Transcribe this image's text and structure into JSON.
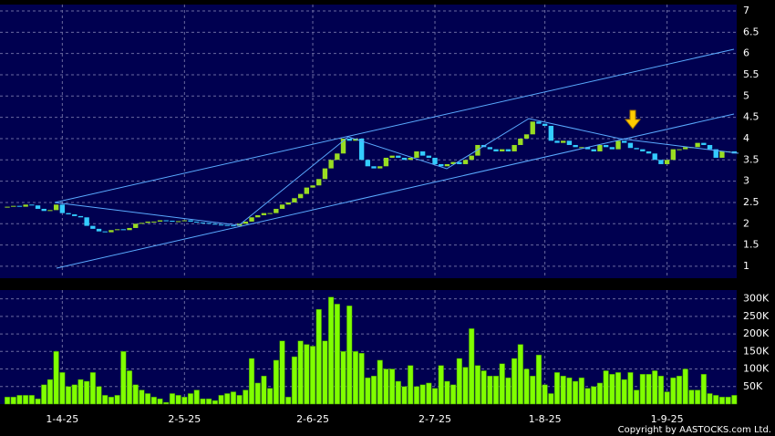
{
  "chart_data": [
    {
      "type": "candlestick",
      "up_color": "#99dd22",
      "down_color": "#33ccff",
      "ylim": [
        0.72,
        7.15
      ],
      "yticks": [
        1,
        1.5,
        2,
        2.5,
        3,
        3.5,
        4,
        4.5,
        5,
        5.5,
        6,
        6.5,
        7
      ],
      "xlim": [
        -1.2,
        119.4
      ],
      "grid": true,
      "series": [
        {
          "name": "Open",
          "values": [
            2.38,
            2.4,
            2.42,
            2.4,
            2.45,
            2.43,
            2.35,
            2.3,
            2.32,
            2.45,
            2.25,
            2.22,
            2.18,
            2.15,
            1.95,
            1.88,
            1.82,
            1.8,
            1.85,
            1.87,
            1.85,
            1.9,
            2.0,
            2.02,
            2.05,
            2.05,
            2.08,
            2.07,
            2.05,
            2.06,
            2.08,
            2.05,
            2.03,
            2.02,
            2.0,
            1.98,
            1.97,
            1.96,
            1.95,
            2.0,
            2.05,
            2.15,
            2.2,
            2.25,
            2.25,
            2.35,
            2.45,
            2.5,
            2.6,
            2.7,
            2.85,
            2.9,
            3.05,
            3.3,
            3.5,
            3.65,
            4.0,
            3.95,
            4.0,
            3.5,
            3.35,
            3.3,
            3.35,
            3.55,
            3.6,
            3.55,
            3.5,
            3.55,
            3.7,
            3.6,
            3.55,
            3.4,
            3.35,
            3.4,
            3.45,
            3.4,
            3.5,
            3.6,
            3.85,
            3.8,
            3.75,
            3.7,
            3.75,
            3.7,
            3.85,
            4.0,
            4.1,
            4.4,
            4.35,
            4.3,
            3.95,
            3.9,
            3.95,
            3.85,
            3.8,
            3.8,
            3.75,
            3.7,
            3.85,
            3.8,
            3.75,
            3.95,
            3.9,
            3.78,
            3.75,
            3.7,
            3.65,
            3.5,
            3.4,
            3.5,
            3.75,
            3.75,
            3.8,
            3.8,
            3.9,
            3.85,
            3.75,
            3.55,
            3.7,
            3.7
          ]
        },
        {
          "name": "Close",
          "values": [
            2.4,
            2.42,
            2.4,
            2.45,
            2.43,
            2.35,
            2.3,
            2.32,
            2.45,
            2.25,
            2.22,
            2.18,
            2.15,
            1.95,
            1.88,
            1.82,
            1.8,
            1.85,
            1.87,
            1.85,
            1.9,
            2.0,
            2.02,
            2.05,
            2.05,
            2.08,
            2.07,
            2.05,
            2.06,
            2.08,
            2.05,
            2.03,
            2.02,
            2.0,
            1.98,
            1.97,
            1.96,
            1.95,
            2.0,
            2.05,
            2.15,
            2.2,
            2.25,
            2.25,
            2.35,
            2.45,
            2.5,
            2.6,
            2.7,
            2.85,
            2.9,
            3.05,
            3.3,
            3.5,
            3.65,
            4.0,
            3.95,
            4.0,
            3.5,
            3.35,
            3.3,
            3.35,
            3.55,
            3.6,
            3.55,
            3.5,
            3.55,
            3.7,
            3.6,
            3.55,
            3.4,
            3.35,
            3.4,
            3.45,
            3.4,
            3.5,
            3.6,
            3.85,
            3.8,
            3.75,
            3.7,
            3.75,
            3.7,
            3.85,
            4.0,
            4.1,
            4.4,
            4.35,
            4.3,
            3.95,
            3.9,
            3.95,
            3.85,
            3.8,
            3.8,
            3.75,
            3.7,
            3.85,
            3.8,
            3.75,
            3.95,
            3.9,
            3.78,
            3.75,
            3.7,
            3.65,
            3.5,
            3.4,
            3.5,
            3.75,
            3.75,
            3.8,
            3.8,
            3.9,
            3.85,
            3.75,
            3.55,
            3.7,
            3.7,
            3.65
          ]
        }
      ]
    },
    {
      "type": "bar",
      "color": "#80ff00",
      "ylim": [
        0,
        325000
      ],
      "yticks": [
        {
          "value": 50000,
          "label": "50K"
        },
        {
          "value": 100000,
          "label": "100K"
        },
        {
          "value": 150000,
          "label": "150K"
        },
        {
          "value": 200000,
          "label": "200K"
        },
        {
          "value": 250000,
          "label": "250K"
        },
        {
          "value": 300000,
          "label": "300K"
        }
      ],
      "xlim": [
        -1.2,
        119.4
      ],
      "xticks": [
        {
          "value": 9,
          "label": "1-4-25"
        },
        {
          "value": 29,
          "label": "2-5-25"
        },
        {
          "value": 50,
          "label": "2-6-25"
        },
        {
          "value": 70,
          "label": "2-7-25"
        },
        {
          "value": 88,
          "label": "1-8-25"
        },
        {
          "value": 108,
          "label": "1-9-25"
        }
      ],
      "grid": true,
      "values": [
        20000,
        20000,
        25000,
        25000,
        25000,
        15000,
        55000,
        70000,
        150000,
        90000,
        50000,
        55000,
        70000,
        65000,
        90000,
        50000,
        25000,
        20000,
        25000,
        150000,
        95000,
        55000,
        40000,
        30000,
        20000,
        15000,
        5000,
        30000,
        25000,
        20000,
        30000,
        40000,
        15000,
        15000,
        10000,
        25000,
        30000,
        35000,
        25000,
        40000,
        130000,
        60000,
        80000,
        45000,
        125000,
        180000,
        20000,
        135000,
        180000,
        170000,
        165000,
        270000,
        180000,
        305000,
        285000,
        150000,
        280000,
        150000,
        145000,
        75000,
        80000,
        125000,
        100000,
        100000,
        65000,
        50000,
        110000,
        50000,
        55000,
        60000,
        45000,
        110000,
        65000,
        55000,
        130000,
        105000,
        215000,
        110000,
        95000,
        80000,
        80000,
        115000,
        75000,
        130000,
        170000,
        100000,
        80000,
        140000,
        55000,
        30000,
        90000,
        80000,
        75000,
        65000,
        75000,
        45000,
        50000,
        60000,
        95000,
        85000,
        90000,
        70000,
        90000,
        40000,
        85000,
        85000,
        95000,
        80000,
        35000,
        75000,
        80000,
        100000,
        40000,
        40000,
        85000,
        30000,
        25000,
        20000,
        20000,
        25000
      ]
    }
  ],
  "footer": "Copyright by AASTOCKS.com Ltd."
}
